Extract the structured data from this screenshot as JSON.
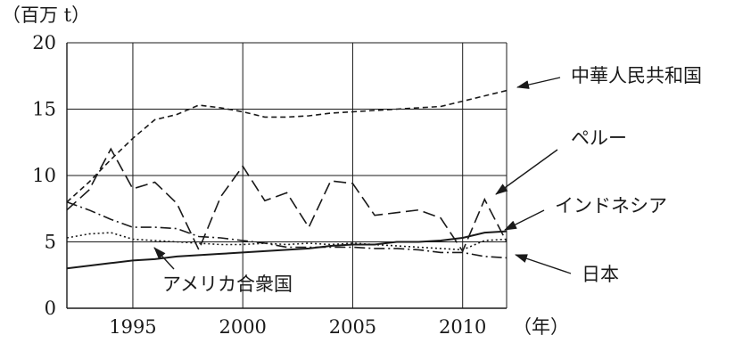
{
  "chart_data": {
    "type": "line",
    "y_unit": "（百万 t）",
    "x_unit": "（年）",
    "xlim": [
      1992,
      2012
    ],
    "ylim": [
      0,
      20
    ],
    "x_ticks": [
      "1995",
      "2000",
      "2005",
      "2010"
    ],
    "y_ticks": [
      "0",
      "5",
      "10",
      "15",
      "20"
    ],
    "grid": true,
    "x": [
      1992,
      1993,
      1994,
      1995,
      1996,
      1997,
      1998,
      1999,
      2000,
      2001,
      2002,
      2003,
      2004,
      2005,
      2006,
      2007,
      2008,
      2009,
      2010,
      2011,
      2012
    ],
    "series": [
      {
        "name": "中華人民共和国",
        "style": "short-dash",
        "values": [
          8.0,
          9.5,
          11.2,
          12.8,
          14.2,
          14.6,
          15.3,
          15.1,
          14.8,
          14.4,
          14.4,
          14.5,
          14.7,
          14.8,
          14.9,
          15.0,
          15.1,
          15.2,
          15.6,
          16.0,
          16.4
        ]
      },
      {
        "name": "ペルー",
        "style": "long-dash",
        "values": [
          7.4,
          8.9,
          12.0,
          9.0,
          9.5,
          7.9,
          4.4,
          8.4,
          10.7,
          8.1,
          8.7,
          6.1,
          9.6,
          9.4,
          7.0,
          7.2,
          7.4,
          6.8,
          4.3,
          8.2,
          5.0
        ]
      },
      {
        "name": "インドネシア",
        "style": "solid",
        "values": [
          3.0,
          3.2,
          3.4,
          3.6,
          3.7,
          3.9,
          4.0,
          4.1,
          4.2,
          4.3,
          4.4,
          4.5,
          4.7,
          4.8,
          4.8,
          5.0,
          5.0,
          5.1,
          5.3,
          5.7,
          5.8
        ]
      },
      {
        "name": "日本",
        "style": "dash-dot",
        "values": [
          8.0,
          7.4,
          6.7,
          6.1,
          6.1,
          6.0,
          5.4,
          5.3,
          5.1,
          4.9,
          4.6,
          4.6,
          4.6,
          4.6,
          4.5,
          4.5,
          4.4,
          4.2,
          4.2,
          3.9,
          3.8
        ]
      },
      {
        "name": "アメリカ合衆国",
        "style": "dotted",
        "values": [
          5.3,
          5.6,
          5.7,
          5.2,
          5.1,
          5.0,
          4.9,
          4.8,
          4.8,
          4.9,
          4.8,
          4.9,
          4.8,
          4.9,
          4.8,
          4.7,
          4.6,
          4.5,
          4.4,
          5.1,
          5.2
        ]
      }
    ]
  }
}
